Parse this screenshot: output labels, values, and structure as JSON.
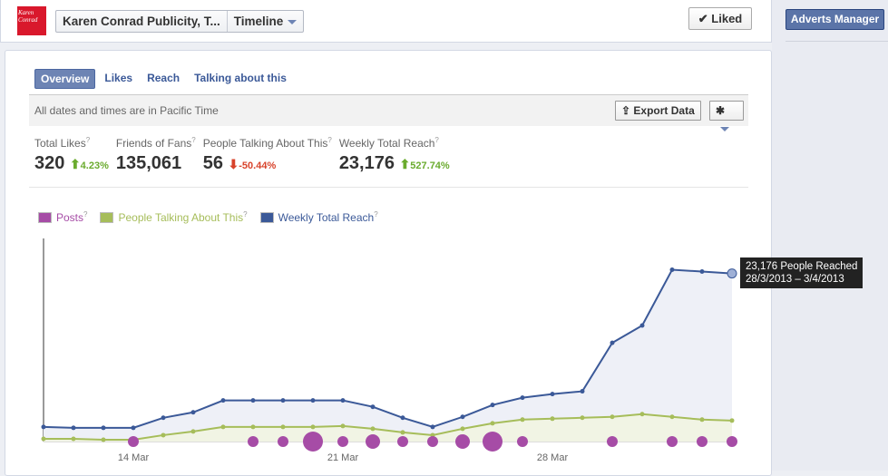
{
  "header": {
    "page_name": "Karen Conrad Publicity, T...",
    "view": "Timeline",
    "liked": "Liked",
    "logo_text": "Karen Conrad"
  },
  "sidebar": {
    "adverts_manager": "Adverts Manager"
  },
  "tabs": [
    {
      "label": "Overview"
    },
    {
      "label": "Likes"
    },
    {
      "label": "Reach"
    },
    {
      "label": "Talking about this"
    }
  ],
  "infobar": {
    "text": "All dates and times are in Pacific Time",
    "export": "Export Data"
  },
  "stats": [
    {
      "label": "Total Likes",
      "value": "320",
      "change": "4.23%",
      "dir": "up"
    },
    {
      "label": "Friends of Fans",
      "value": "135,061"
    },
    {
      "label": "People Talking About This",
      "value": "56",
      "change": "-50.44%",
      "dir": "down"
    },
    {
      "label": "Weekly Total Reach",
      "value": "23,176",
      "change": "527.74%",
      "dir": "up"
    }
  ],
  "help_mark": "?",
  "tooltip": {
    "line1": "23,176 People Reached",
    "line2": "28/3/2013 – 3/4/2013"
  },
  "chart_data": {
    "type": "line",
    "x": [
      "11 Mar",
      "12 Mar",
      "13 Mar",
      "14 Mar",
      "15 Mar",
      "16 Mar",
      "17 Mar",
      "18 Mar",
      "19 Mar",
      "20 Mar",
      "21 Mar",
      "22 Mar",
      "23 Mar",
      "24 Mar",
      "25 Mar",
      "26 Mar",
      "27 Mar",
      "28 Mar",
      "29 Mar",
      "30 Mar",
      "31 Mar",
      "1 Apr",
      "2 Apr",
      "3 Apr"
    ],
    "x_ticks": [
      "14 Mar",
      "21 Mar",
      "28 Mar"
    ],
    "ymax": 28000,
    "legend": [
      "Posts",
      "People Talking About This",
      "Weekly Total Reach"
    ],
    "colors": {
      "posts": "#a64ca6",
      "talking": "#a6bd5a",
      "reach": "#3b5998"
    },
    "series": [
      {
        "name": "Weekly Total Reach",
        "values": [
          2016,
          1890,
          1890,
          1890,
          3276,
          4032,
          5670,
          5670,
          5670,
          5670,
          5670,
          4788,
          3276,
          2016,
          3402,
          5040,
          6048,
          6552,
          6930,
          13608,
          16002,
          23688,
          23436,
          23176
        ]
      },
      {
        "name": "People Talking About This",
        "values": [
          378,
          378,
          252,
          252,
          882,
          1386,
          2016,
          2016,
          2016,
          2016,
          2142,
          1764,
          1260,
          882,
          1764,
          2520,
          3024,
          3150,
          3276,
          3402,
          3780,
          3402,
          3024,
          2898
        ]
      },
      {
        "name": "Posts",
        "values": [
          0,
          0,
          0,
          1,
          0,
          0,
          0,
          1,
          1,
          3,
          1,
          2,
          1,
          1,
          2,
          3,
          1,
          0,
          0,
          1,
          0,
          1,
          1,
          1
        ]
      }
    ]
  }
}
